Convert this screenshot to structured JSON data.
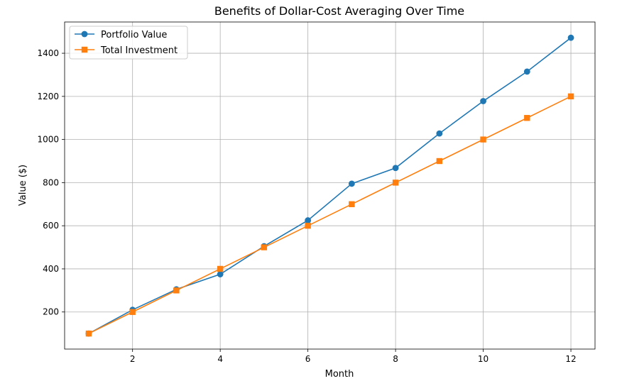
{
  "chart_data": {
    "type": "line",
    "title": "Benefits of Dollar-Cost Averaging Over Time",
    "xlabel": "Month",
    "ylabel": "Value ($)",
    "x": [
      1,
      2,
      3,
      4,
      5,
      6,
      7,
      8,
      9,
      10,
      11,
      12
    ],
    "xlim": [
      0.45,
      12.55
    ],
    "ylim": [
      28,
      1545
    ],
    "xticks": [
      2,
      4,
      6,
      8,
      10,
      12
    ],
    "yticks": [
      200,
      400,
      600,
      800,
      1000,
      1200,
      1400
    ],
    "grid": true,
    "legend_position": "upper-left",
    "series": [
      {
        "name": "Portfolio Value",
        "color": "#1f77b4",
        "marker": "circle",
        "values": [
          100,
          210,
          305,
          375,
          505,
          625,
          795,
          868,
          1028,
          1178,
          1315,
          1472
        ]
      },
      {
        "name": "Total Investment",
        "color": "#ff7f0e",
        "marker": "square",
        "values": [
          100,
          200,
          300,
          400,
          500,
          600,
          700,
          800,
          900,
          1000,
          1100,
          1200
        ]
      }
    ]
  }
}
